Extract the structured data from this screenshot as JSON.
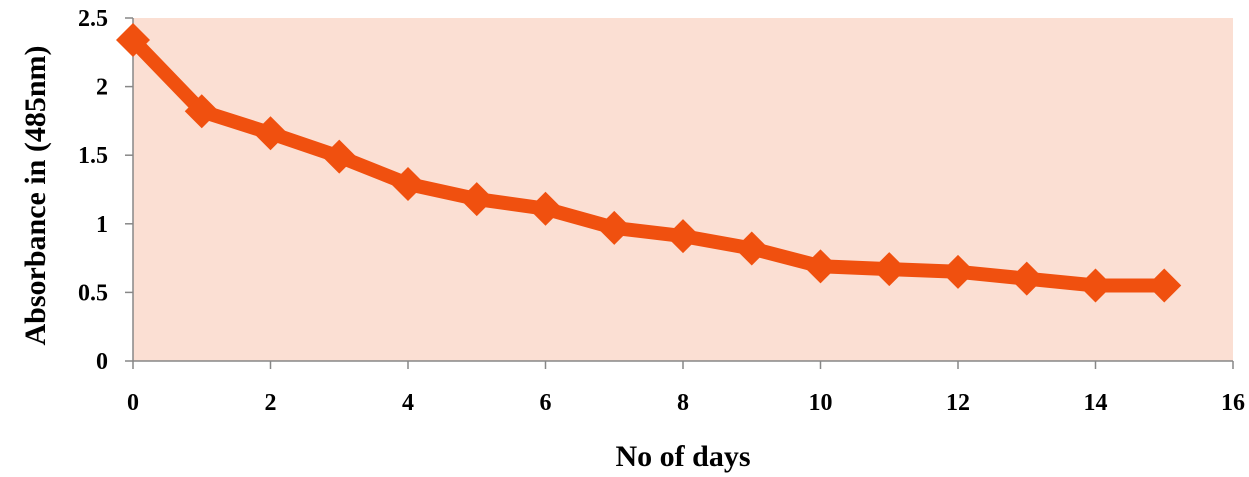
{
  "chart_data": {
    "type": "line",
    "title": "",
    "xlabel": "No of days",
    "ylabel": "Absorbance in  (485nm)",
    "xlim": [
      0,
      16
    ],
    "ylim": [
      0,
      2.5
    ],
    "xticks": [
      "0",
      "2",
      "4",
      "6",
      "8",
      "10",
      "12",
      "14",
      "16"
    ],
    "yticks": [
      "0",
      "0.5",
      "1",
      "1.5",
      "2",
      "2.5"
    ],
    "grid": false,
    "legend": "none",
    "plot_background": "#fbdfd3",
    "series": [
      {
        "color": "#f0500f",
        "marker": "diamond",
        "x": [
          0,
          1,
          2,
          3,
          4,
          5,
          6,
          7,
          8,
          9,
          10,
          11,
          12,
          13,
          14,
          15
        ],
        "y": [
          2.34,
          1.82,
          1.66,
          1.49,
          1.29,
          1.18,
          1.11,
          0.97,
          0.91,
          0.82,
          0.69,
          0.67,
          0.65,
          0.6,
          0.55,
          0.55
        ]
      }
    ]
  }
}
